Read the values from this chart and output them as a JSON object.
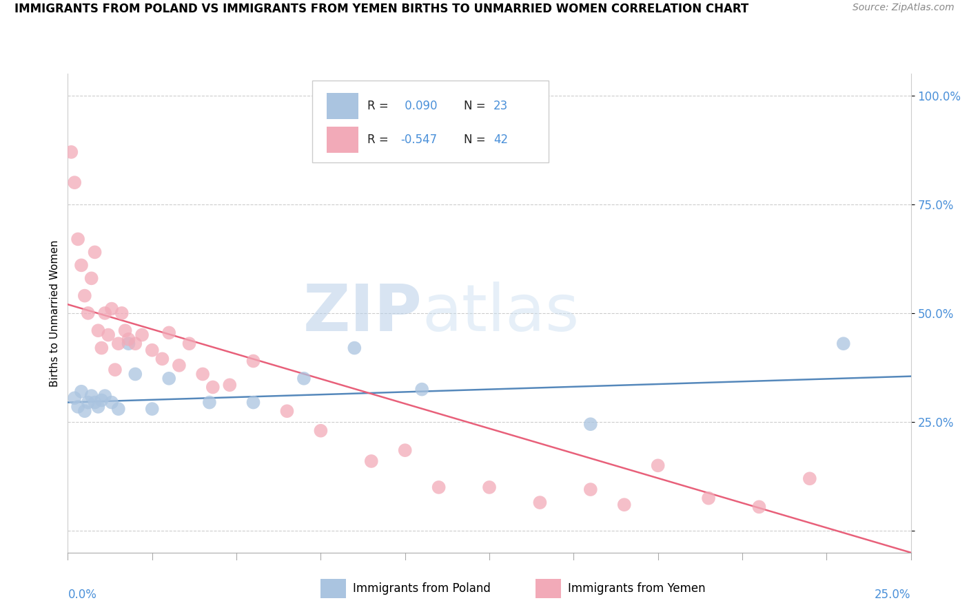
{
  "title": "IMMIGRANTS FROM POLAND VS IMMIGRANTS FROM YEMEN BIRTHS TO UNMARRIED WOMEN CORRELATION CHART",
  "source": "Source: ZipAtlas.com",
  "ylabel": "Births to Unmarried Women",
  "y_ticks": [
    0.0,
    0.25,
    0.5,
    0.75,
    1.0
  ],
  "y_tick_labels": [
    "",
    "25.0%",
    "50.0%",
    "75.0%",
    "100.0%"
  ],
  "x_range": [
    0.0,
    0.25
  ],
  "y_range": [
    -0.05,
    1.05
  ],
  "poland_color": "#aac4e0",
  "yemen_color": "#f2aab8",
  "poland_line_color": "#5588bb",
  "yemen_line_color": "#e8607a",
  "poland_scatter_x": [
    0.002,
    0.003,
    0.004,
    0.005,
    0.006,
    0.007,
    0.008,
    0.009,
    0.01,
    0.011,
    0.013,
    0.015,
    0.018,
    0.02,
    0.025,
    0.03,
    0.042,
    0.055,
    0.07,
    0.085,
    0.105,
    0.155,
    0.23
  ],
  "poland_scatter_y": [
    0.305,
    0.285,
    0.32,
    0.275,
    0.295,
    0.31,
    0.295,
    0.285,
    0.3,
    0.31,
    0.295,
    0.28,
    0.43,
    0.36,
    0.28,
    0.35,
    0.295,
    0.295,
    0.35,
    0.42,
    0.325,
    0.245,
    0.43
  ],
  "yemen_scatter_x": [
    0.001,
    0.002,
    0.003,
    0.004,
    0.005,
    0.006,
    0.007,
    0.008,
    0.009,
    0.01,
    0.011,
    0.012,
    0.013,
    0.014,
    0.015,
    0.016,
    0.017,
    0.018,
    0.02,
    0.022,
    0.025,
    0.028,
    0.03,
    0.033,
    0.036,
    0.04,
    0.043,
    0.048,
    0.055,
    0.065,
    0.075,
    0.09,
    0.1,
    0.11,
    0.125,
    0.14,
    0.155,
    0.165,
    0.175,
    0.19,
    0.205,
    0.22
  ],
  "yemen_scatter_y": [
    0.87,
    0.8,
    0.67,
    0.61,
    0.54,
    0.5,
    0.58,
    0.64,
    0.46,
    0.42,
    0.5,
    0.45,
    0.51,
    0.37,
    0.43,
    0.5,
    0.46,
    0.44,
    0.43,
    0.45,
    0.415,
    0.395,
    0.455,
    0.38,
    0.43,
    0.36,
    0.33,
    0.335,
    0.39,
    0.275,
    0.23,
    0.16,
    0.185,
    0.1,
    0.1,
    0.065,
    0.095,
    0.06,
    0.15,
    0.075,
    0.055,
    0.12
  ],
  "poland_trend_x": [
    0.0,
    0.25
  ],
  "poland_trend_y": [
    0.295,
    0.355
  ],
  "yemen_trend_x": [
    0.0,
    0.25
  ],
  "yemen_trend_y": [
    0.52,
    -0.05
  ]
}
